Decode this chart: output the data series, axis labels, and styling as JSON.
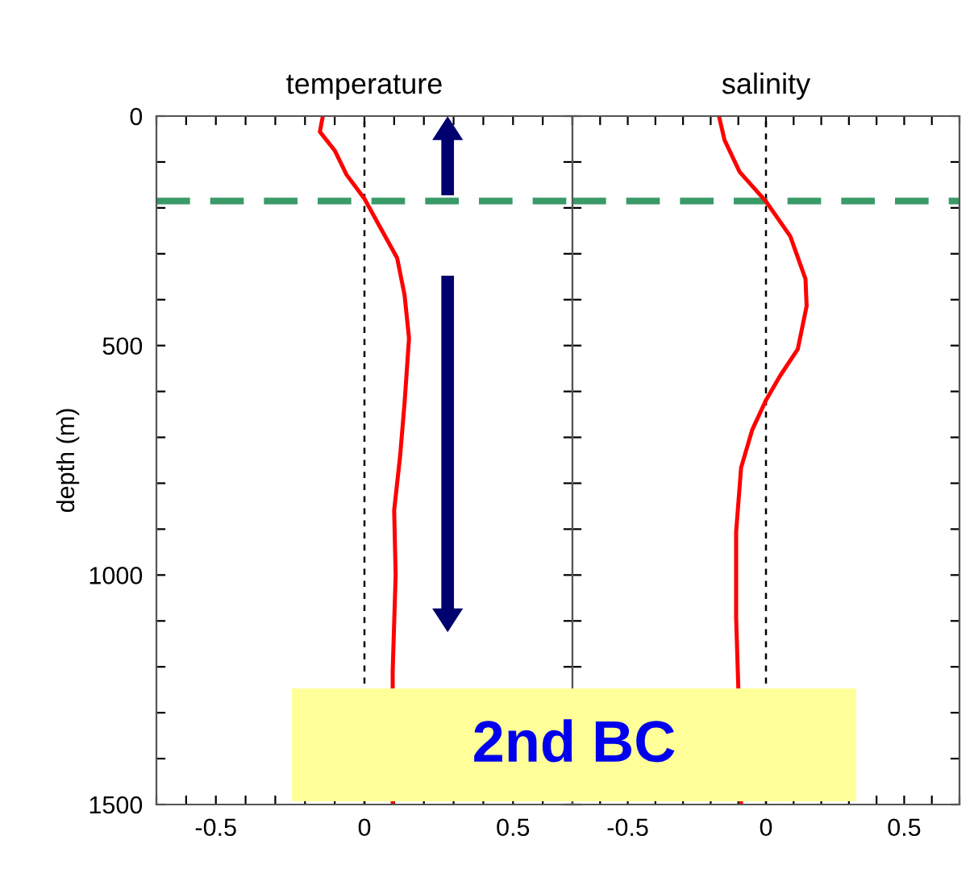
{
  "chart_data": [
    {
      "type": "line",
      "title": "temperature",
      "ylabel": "depth (m)",
      "xlim": [
        -0.7,
        0.7
      ],
      "ylim": [
        1500,
        0
      ],
      "xticks": [
        {
          "value": -0.7,
          "label": null
        },
        {
          "value": -0.6,
          "label": null
        },
        -0.5,
        {
          "value": -0.4,
          "label": null
        },
        {
          "value": -0.3,
          "label": null
        },
        {
          "value": -0.2,
          "label": null
        },
        {
          "value": -0.1,
          "label": null
        },
        0,
        {
          "value": 0.1,
          "label": null
        },
        {
          "value": 0.2,
          "label": null
        },
        {
          "value": 0.3,
          "label": null
        },
        {
          "value": 0.4,
          "label": null
        },
        0.5,
        {
          "value": 0.6,
          "label": null
        },
        {
          "value": 0.7,
          "label": null
        }
      ],
      "yticks": [
        0,
        {
          "value": 100,
          "label": null
        },
        {
          "value": 200,
          "label": null
        },
        {
          "value": 300,
          "label": null
        },
        {
          "value": 400,
          "label": null
        },
        500,
        {
          "value": 600,
          "label": null
        },
        {
          "value": 700,
          "label": null
        },
        {
          "value": 800,
          "label": null
        },
        {
          "value": 900,
          "label": null
        },
        1000,
        {
          "value": 1100,
          "label": null
        },
        {
          "value": 1200,
          "label": null
        },
        {
          "value": 1300,
          "label": null
        },
        {
          "value": 1400,
          "label": null
        },
        1500
      ],
      "orientation": "horizontal",
      "series": [
        {
          "color": "#ff0000",
          "values": [
            -0.14,
            -0.15,
            -0.1,
            -0.06,
            0.0,
            0.05,
            0.11,
            0.135,
            0.15,
            0.135,
            0.12,
            0.1,
            0.105,
            0.095,
            0.095
          ],
          "x": [
            0,
            34,
            75,
            128,
            180,
            239,
            309,
            390,
            484,
            625,
            741,
            859,
            1000,
            1210,
            1500
          ]
        }
      ],
      "ref_lines": [
        {
          "axis": "x",
          "value": 0,
          "color": "#000000",
          "line_style": "dotted"
        },
        {
          "axis": "y",
          "value": 185,
          "color": "#3a9a68",
          "line_style": "dashed"
        }
      ],
      "annotations": [
        "2nd BC"
      ],
      "grid": false,
      "line_style": "solid",
      "marker": "none",
      "legend": false
    },
    {
      "type": "line",
      "title": "salinity",
      "xlim": [
        -0.7,
        0.7
      ],
      "ylim": [
        1500,
        0
      ],
      "tick_labels": "x",
      "xticks": [
        {
          "value": -0.7,
          "label": null
        },
        {
          "value": -0.6,
          "label": null
        },
        -0.5,
        {
          "value": -0.4,
          "label": null
        },
        {
          "value": -0.3,
          "label": null
        },
        {
          "value": -0.2,
          "label": null
        },
        {
          "value": -0.1,
          "label": null
        },
        0,
        {
          "value": 0.1,
          "label": null
        },
        {
          "value": 0.2,
          "label": null
        },
        {
          "value": 0.3,
          "label": null
        },
        {
          "value": 0.4,
          "label": null
        },
        0.5,
        {
          "value": 0.6,
          "label": null
        },
        {
          "value": 0.7,
          "label": null
        }
      ],
      "yticks": [
        0,
        {
          "value": 100,
          "label": null
        },
        {
          "value": 200,
          "label": null
        },
        {
          "value": 300,
          "label": null
        },
        {
          "value": 400,
          "label": null
        },
        500,
        {
          "value": 600,
          "label": null
        },
        {
          "value": 700,
          "label": null
        },
        {
          "value": 800,
          "label": null
        },
        {
          "value": 900,
          "label": null
        },
        1000,
        {
          "value": 1100,
          "label": null
        },
        {
          "value": 1200,
          "label": null
        },
        {
          "value": 1300,
          "label": null
        },
        {
          "value": 1400,
          "label": null
        },
        1500
      ],
      "orientation": "horizontal",
      "series": [
        {
          "color": "#ff0000",
          "values": [
            -0.17,
            -0.15,
            -0.095,
            0.0,
            0.088,
            0.143,
            0.147,
            0.115,
            0.051,
            0.0,
            -0.05,
            -0.09,
            -0.108,
            -0.108,
            -0.1,
            -0.09
          ],
          "x": [
            0,
            52,
            122,
            186,
            262,
            355,
            414,
            508,
            566,
            619,
            684,
            766,
            906,
            1093,
            1246,
            1500
          ]
        }
      ],
      "ref_lines": [
        {
          "axis": "x",
          "value": 0,
          "color": "#000000",
          "line_style": "dotted"
        },
        {
          "axis": "y",
          "value": 185,
          "color": "#3a9a68",
          "line_style": "dashed"
        }
      ],
      "grid": false,
      "line_style": "solid",
      "marker": "none",
      "legend": false
    }
  ]
}
